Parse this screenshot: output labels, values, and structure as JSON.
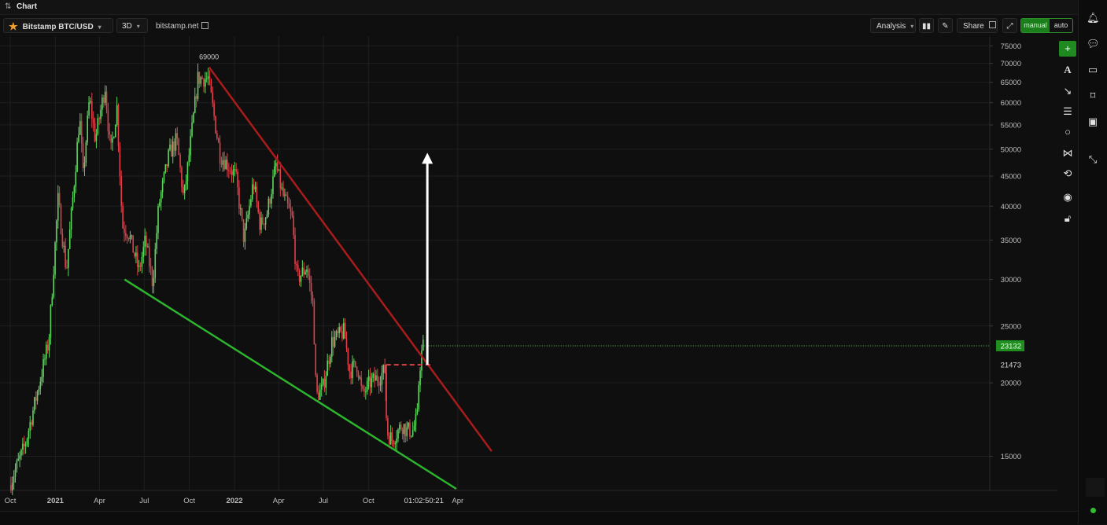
{
  "window": {
    "title": "Chart",
    "title_icon": "chart-tile-icon",
    "maximize_icon": "maximize-icon"
  },
  "toolbar": {
    "symbol_label": "Bitstamp BTC/USD",
    "interval_label": "3D",
    "source_label": "bitstamp.net",
    "analysis_label": "Analysis",
    "share_label": "Share",
    "manual_label": "manual",
    "auto_label": "auto"
  },
  "icons": {
    "star": "star-icon",
    "chevron": "chevron-down-icon",
    "external": "external-link-icon",
    "candle": "candle-style-icon",
    "pencil": "pencil-icon",
    "fullscreen": "fullscreen-icon"
  },
  "colors": {
    "background": "#0f0f0f",
    "up": "#5fd35f",
    "down": "#e0404a",
    "resistance": "#a81c1c",
    "support": "#2db52d",
    "price_label": "#1f8f1f",
    "arrow": "#ffffff"
  },
  "chart_data": {
    "type": "candlestick",
    "symbol": "Bitstamp BTC/USD",
    "interval": "3D",
    "y_scale": "log",
    "ylim": [
      13200,
      76000
    ],
    "y_ticks": [
      15000,
      20000,
      25000,
      30000,
      35000,
      40000,
      45000,
      50000,
      55000,
      60000,
      65000,
      70000,
      75000
    ],
    "x_ticks": [
      "Oct",
      "2021",
      "Apr",
      "Jul",
      "Oct",
      "2022",
      "Apr",
      "Jul",
      "Oct",
      "Apr"
    ],
    "x_tick_dates": [
      "2020-10-01",
      "2021-01-01",
      "2021-04-01",
      "2021-07-01",
      "2021-10-01",
      "2022-01-01",
      "2022-04-01",
      "2022-07-01",
      "2022-10-01",
      "2023-04-01"
    ],
    "countdown_label": "01:02:50:21",
    "grid": true,
    "close_path": [
      [
        "2020-10-01",
        13400
      ],
      [
        "2020-11-01",
        15600
      ],
      [
        "2020-11-25",
        19000
      ],
      [
        "2020-12-20",
        23500
      ],
      [
        "2021-01-08",
        41000
      ],
      [
        "2021-01-25",
        31000
      ],
      [
        "2021-02-10",
        44000
      ],
      [
        "2021-02-21",
        57000
      ],
      [
        "2021-02-28",
        45000
      ],
      [
        "2021-03-13",
        61000
      ],
      [
        "2021-03-25",
        52000
      ],
      [
        "2021-04-14",
        64000
      ],
      [
        "2021-04-25",
        49000
      ],
      [
        "2021-05-08",
        59000
      ],
      [
        "2021-05-19",
        37000
      ],
      [
        "2021-06-01",
        36000
      ],
      [
        "2021-06-22",
        31000
      ],
      [
        "2021-07-05",
        35000
      ],
      [
        "2021-07-20",
        29500
      ],
      [
        "2021-08-01",
        40000
      ],
      [
        "2021-08-22",
        49000
      ],
      [
        "2021-09-07",
        52000
      ],
      [
        "2021-09-21",
        41000
      ],
      [
        "2021-10-01",
        48000
      ],
      [
        "2021-10-20",
        66000
      ],
      [
        "2021-11-10",
        66000
      ],
      [
        "2021-11-26",
        54000
      ],
      [
        "2021-12-04",
        49000
      ],
      [
        "2021-12-20",
        47000
      ],
      [
        "2022-01-05",
        45000
      ],
      [
        "2022-01-22",
        35000
      ],
      [
        "2022-02-10",
        44000
      ],
      [
        "2022-02-24",
        37000
      ],
      [
        "2022-03-10",
        39000
      ],
      [
        "2022-03-28",
        47000
      ],
      [
        "2022-04-10",
        42000
      ],
      [
        "2022-04-30",
        38000
      ],
      [
        "2022-05-10",
        30000
      ],
      [
        "2022-05-30",
        31500
      ],
      [
        "2022-06-12",
        27000
      ],
      [
        "2022-06-18",
        19000
      ],
      [
        "2022-07-01",
        19500
      ],
      [
        "2022-07-20",
        23500
      ],
      [
        "2022-08-14",
        24500
      ],
      [
        "2022-08-25",
        21000
      ],
      [
        "2022-09-10",
        21500
      ],
      [
        "2022-09-20",
        19000
      ],
      [
        "2022-10-05",
        20000
      ],
      [
        "2022-10-25",
        20500
      ],
      [
        "2022-11-05",
        21000
      ],
      [
        "2022-11-09",
        16500
      ],
      [
        "2022-11-20",
        16000
      ],
      [
        "2022-12-10",
        17000
      ],
      [
        "2022-12-20",
        16600
      ],
      [
        "2023-01-01",
        16600
      ],
      [
        "2023-01-10",
        17500
      ],
      [
        "2023-01-14",
        20900
      ],
      [
        "2023-01-21",
        23132
      ]
    ],
    "trendlines": [
      {
        "name": "resistance",
        "color": "#a81c1c",
        "from": [
          "2021-11-10",
          69000
        ],
        "to": [
          "2023-06-09",
          15300
        ]
      },
      {
        "name": "support",
        "color": "#2db52d",
        "from": [
          "2021-05-22",
          30000
        ],
        "to": [
          "2023-03-29",
          13200
        ]
      }
    ],
    "horizontal_line": {
      "value": 21473,
      "from": "2022-11-06",
      "to": "2023-02-07",
      "color": "#e0404a",
      "style": "dashed"
    },
    "last_price_line": {
      "value": 23132,
      "from": "2023-01-22",
      "color": "#5fd35f",
      "style": "dotted"
    },
    "arrow": {
      "date": "2023-01-29",
      "from": 21473,
      "to": 49000,
      "color": "#ffffff"
    },
    "annotation": {
      "text": "69000",
      "date": "2021-11-10",
      "value": 69000
    },
    "price_labels": [
      {
        "value": 23132,
        "text": "23132",
        "highlight": true
      },
      {
        "value": 21473,
        "text": "21473",
        "highlight": false
      }
    ]
  }
}
